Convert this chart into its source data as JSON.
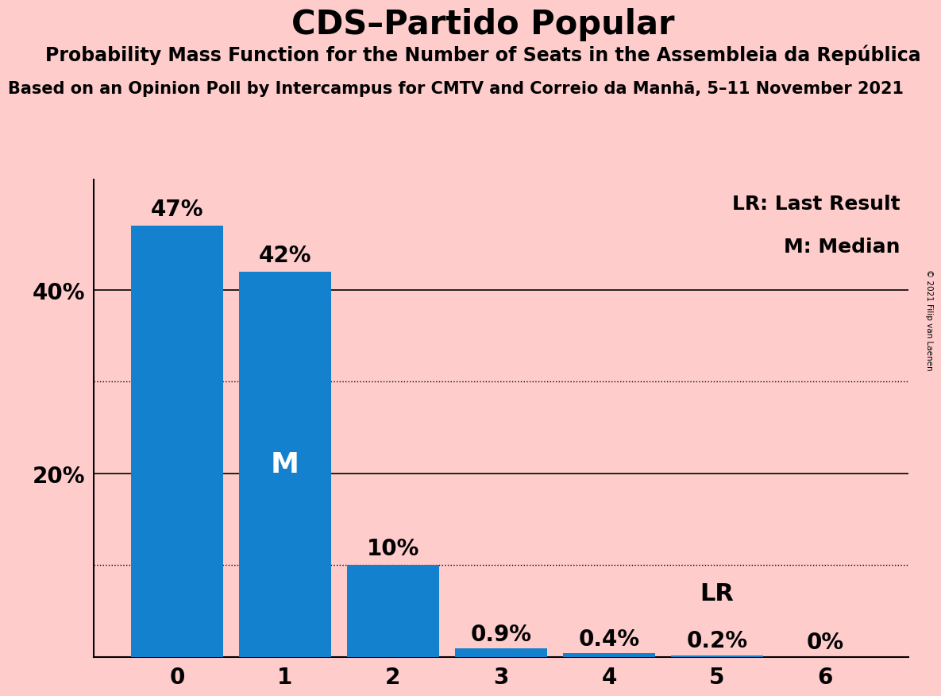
{
  "title": "CDS–Partido Popular",
  "subtitle": "Probability Mass Function for the Number of Seats in the Assembleia da República",
  "sub_subtitle": "Based on an Opinion Poll by Intercampus for CMTV and Correio da Manhã, 5–11 November 2021",
  "copyright": "© 2021 Filip van Laenen",
  "categories": [
    0,
    1,
    2,
    3,
    4,
    5,
    6
  ],
  "values": [
    47,
    42,
    10,
    0.9,
    0.4,
    0.2,
    0
  ],
  "bar_color": "#1481CE",
  "background_color": "#FFCCCC",
  "bar_labels": [
    "47%",
    "42%",
    "10%",
    "0.9%",
    "0.4%",
    "0.2%",
    "0%"
  ],
  "median_bar": 1,
  "lr_bar": 5,
  "ylim": [
    0,
    52
  ],
  "solid_grid": [
    20,
    40
  ],
  "dotted_grid": [
    10,
    30
  ],
  "legend_lr": "LR: Last Result",
  "legend_m": "M: Median",
  "title_fontsize": 30,
  "subtitle_fontsize": 17,
  "sub_subtitle_fontsize": 15,
  "bar_label_fontsize": 20,
  "tick_fontsize": 20,
  "legend_fontsize": 18
}
